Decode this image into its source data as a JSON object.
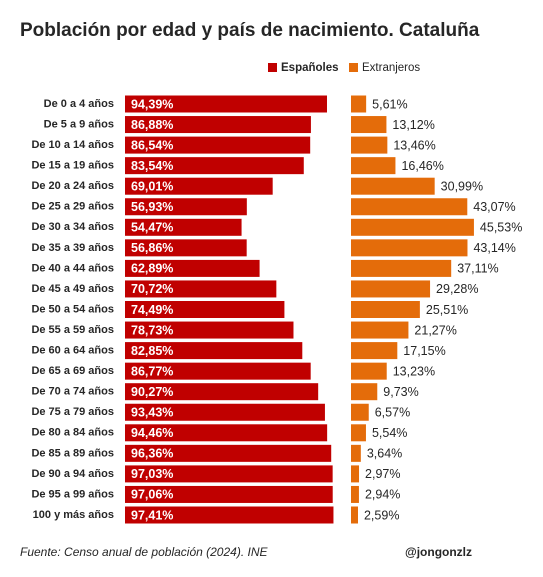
{
  "chart_data": {
    "type": "bar",
    "orientation": "horizontal",
    "layout": "side-by-side",
    "title": "Población por edad y país de nacimiento. Cataluña",
    "categories": [
      "De 0 a 4 años",
      "De 5 a 9 años",
      "De 10 a 14 años",
      "De 15 a 19 años",
      "De 20 a 24 años",
      "De 25 a 29 años",
      "De 30 a 34 años",
      "De 35 a 39 años",
      "De 40 a 44 años",
      "De 45 a 49 años",
      "De 50 a 54 años",
      "De 55 a 59 años",
      "De 60 a 64 años",
      "De 65 a 69 años",
      "De 70 a 74 años",
      "De 75 a 79 años",
      "De 80 a 84 años",
      "De 85 a 89 años",
      "De 90 a 94 años",
      "De 95 a 99 años",
      "100 y más años"
    ],
    "series": [
      {
        "name": "Españoles",
        "color": "#c00000",
        "values": [
          94.39,
          86.88,
          86.54,
          83.54,
          69.01,
          56.93,
          54.47,
          56.86,
          62.89,
          70.72,
          74.49,
          78.73,
          82.85,
          86.77,
          90.27,
          93.43,
          94.46,
          96.36,
          97.03,
          97.06,
          97.41
        ],
        "value_labels": [
          "94,39%",
          "86,88%",
          "86,54%",
          "83,54%",
          "69,01%",
          "56,93%",
          "54,47%",
          "56,86%",
          "62,89%",
          "70,72%",
          "74,49%",
          "78,73%",
          "82,85%",
          "86,77%",
          "90,27%",
          "93,43%",
          "94,46%",
          "96,36%",
          "97,03%",
          "97,06%",
          "97,41%"
        ]
      },
      {
        "name": "Extranjeros",
        "color": "#e46c0a",
        "values": [
          5.61,
          13.12,
          13.46,
          16.46,
          30.99,
          43.07,
          45.53,
          43.14,
          37.11,
          29.28,
          25.51,
          21.27,
          17.15,
          13.23,
          9.73,
          6.57,
          5.54,
          3.64,
          2.97,
          2.94,
          2.59
        ],
        "value_labels": [
          "5,61%",
          "13,12%",
          "13,46%",
          "16,46%",
          "30,99%",
          "43,07%",
          "45,53%",
          "43,14%",
          "37,11%",
          "29,28%",
          "25,51%",
          "21,27%",
          "17,15%",
          "13,23%",
          "9,73%",
          "6,57%",
          "5,54%",
          "3,64%",
          "2,97%",
          "2,94%",
          "2,59%"
        ]
      }
    ],
    "source": "Fuente: Censo anual de población (2024). INE",
    "credit": "@jongonzlz"
  }
}
